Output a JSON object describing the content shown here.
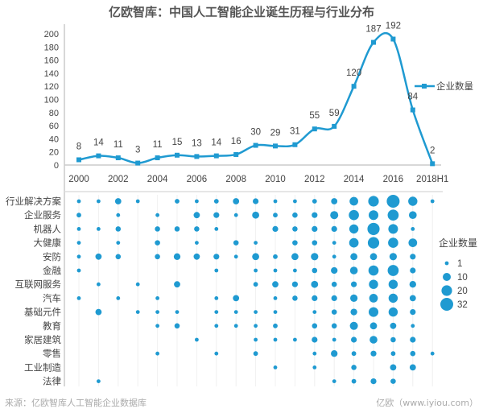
{
  "chart_data": [
    {
      "type": "line",
      "title": "亿欧智库：中国人工智能企业诞生历程与行业分布",
      "x": [
        "2000",
        "2001",
        "2002",
        "2003",
        "2004",
        "2005",
        "2006",
        "2007",
        "2008",
        "2009",
        "2010",
        "2011",
        "2012",
        "2013",
        "2014",
        "2015",
        "2016",
        "2017",
        "2018H1"
      ],
      "x_tick_labels": [
        "2000",
        "2002",
        "2004",
        "2006",
        "2008",
        "2010",
        "2012",
        "2014",
        "2016",
        "2018H1"
      ],
      "series": [
        {
          "name": "企业数量",
          "values": [
            8,
            14,
            11,
            3,
            11,
            15,
            13,
            14,
            16,
            30,
            29,
            31,
            55,
            59,
            120,
            187,
            192,
            84,
            2
          ]
        }
      ],
      "ylim": [
        0,
        200
      ],
      "yticks": [
        0,
        20,
        40,
        60,
        80,
        100,
        120,
        140,
        160,
        180,
        200
      ],
      "xlabel": "",
      "ylabel": "",
      "legend": "right",
      "color": "#1f9ad1"
    },
    {
      "type": "scatter",
      "subtype": "bubble",
      "categories": [
        "行业解决方案",
        "企业服务",
        "机器人",
        "大健康",
        "安防",
        "金融",
        "互联网服务",
        "汽车",
        "基础元件",
        "教育",
        "家居建筑",
        "零售",
        "工业制造",
        "法律"
      ],
      "x": [
        "2000",
        "2001",
        "2002",
        "2003",
        "2004",
        "2005",
        "2006",
        "2007",
        "2008",
        "2009",
        "2010",
        "2011",
        "2012",
        "2013",
        "2014",
        "2015",
        "2016",
        "2017",
        "2018H1"
      ],
      "values": [
        [
          1,
          1,
          5,
          1,
          0,
          2,
          1,
          2,
          5,
          4,
          1,
          1,
          2,
          5,
          12,
          20,
          32,
          14,
          1
        ],
        [
          2,
          0,
          1,
          0,
          1,
          0,
          5,
          4,
          1,
          7,
          2,
          3,
          4,
          10,
          18,
          16,
          22,
          9,
          0
        ],
        [
          1,
          1,
          3,
          0,
          3,
          3,
          3,
          1,
          0,
          0,
          4,
          3,
          4,
          4,
          14,
          28,
          16,
          1,
          0
        ],
        [
          1,
          0,
          1,
          0,
          3,
          0,
          1,
          0,
          3,
          1,
          0,
          3,
          3,
          1,
          15,
          24,
          18,
          12,
          0
        ],
        [
          1,
          5,
          3,
          0,
          3,
          6,
          5,
          4,
          1,
          7,
          2,
          7,
          8,
          1,
          7,
          7,
          8,
          4,
          0
        ],
        [
          1,
          0,
          0,
          0,
          0,
          0,
          0,
          1,
          0,
          1,
          1,
          1,
          3,
          6,
          9,
          18,
          22,
          4,
          0
        ],
        [
          0,
          1,
          0,
          1,
          0,
          5,
          0,
          0,
          0,
          2,
          5,
          4,
          7,
          3,
          4,
          14,
          14,
          6,
          0
        ],
        [
          1,
          0,
          1,
          0,
          1,
          0,
          0,
          1,
          5,
          0,
          1,
          3,
          4,
          4,
          8,
          12,
          14,
          5,
          0
        ],
        [
          0,
          5,
          0,
          1,
          1,
          1,
          0,
          1,
          1,
          1,
          1,
          0,
          1,
          3,
          6,
          16,
          14,
          4,
          0
        ],
        [
          0,
          0,
          0,
          0,
          1,
          3,
          0,
          1,
          1,
          1,
          2,
          0,
          3,
          3,
          10,
          7,
          5,
          1,
          0
        ],
        [
          0,
          0,
          0,
          0,
          0,
          0,
          1,
          0,
          0,
          1,
          1,
          1,
          4,
          1,
          4,
          9,
          3,
          4,
          0
        ],
        [
          0,
          0,
          0,
          0,
          1,
          0,
          0,
          1,
          0,
          2,
          0,
          0,
          1,
          6,
          2,
          4,
          2,
          3,
          1
        ],
        [
          0,
          0,
          0,
          0,
          0,
          0,
          0,
          0,
          0,
          0,
          1,
          0,
          1,
          0,
          3,
          0,
          5,
          5,
          0
        ],
        [
          0,
          1,
          0,
          0,
          0,
          0,
          0,
          0,
          0,
          0,
          0,
          0,
          0,
          1,
          2,
          4,
          3,
          0,
          0
        ]
      ],
      "legend_title": "企业数量",
      "legend_values": [
        1,
        10,
        20,
        32
      ],
      "color": "#1f9ad1"
    }
  ],
  "footer": {
    "source": "来源：亿欧智库人工智能企业数据库",
    "brand": "亿欧（www.iyiou.com）"
  }
}
